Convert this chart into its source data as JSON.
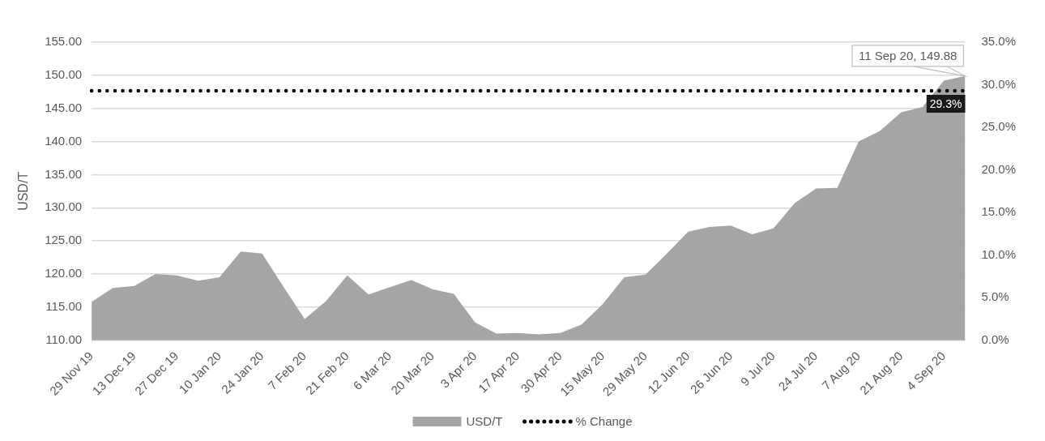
{
  "chart_data": {
    "type": "area",
    "ylabel": "USD/T",
    "categories": [
      "29 Nov 19",
      null,
      "13 Dec 19",
      null,
      "27 Dec 19",
      null,
      "10 Jan 20",
      null,
      "24 Jan 20",
      null,
      "7 Feb 20",
      null,
      "21 Feb 20",
      null,
      "6 Mar 20",
      null,
      "20 Mar 20",
      null,
      "3 Apr 20",
      null,
      "17 Apr 20",
      null,
      "30 Apr 20",
      null,
      "15 May 20",
      null,
      "29 May 20",
      null,
      "12 Jun 20",
      null,
      "26 Jun 20",
      null,
      "9 Jul 20",
      null,
      "24 Jul 20",
      null,
      "7 Aug 20",
      null,
      "21 Aug 20",
      null,
      "4 Sep 20",
      null
    ],
    "series": [
      {
        "name": "USD/T",
        "type": "area",
        "color": "#a5a5a5",
        "values": [
          115.8,
          117.9,
          118.2,
          120.0,
          119.8,
          119.0,
          119.5,
          123.4,
          123.1,
          118.1,
          113.2,
          115.9,
          119.8,
          116.9,
          118.0,
          119.1,
          117.7,
          117.0,
          112.7,
          111.0,
          111.1,
          110.9,
          111.1,
          112.4,
          115.5,
          119.5,
          119.9,
          123.1,
          126.4,
          127.1,
          127.3,
          126.0,
          126.9,
          130.7,
          132.9,
          133.0,
          140.0,
          141.6,
          144.4,
          145.2,
          149.2,
          149.88
        ],
        "value_labels": [
          null,
          null,
          null,
          null,
          null,
          null,
          null,
          null,
          null,
          null,
          null,
          null,
          null,
          null,
          null,
          null,
          null,
          null,
          null,
          null,
          null,
          null,
          null,
          null,
          null,
          null,
          null,
          null,
          null,
          null,
          null,
          null,
          null,
          null,
          null,
          null,
          null,
          null,
          null,
          null,
          null,
          "11 Sep 20, 149.88"
        ]
      },
      {
        "name": "% Change",
        "type": "line",
        "axis": "y2",
        "color": "#000000",
        "line_style": "dotted",
        "marker": "none",
        "values": [
          29.3,
          29.3,
          29.3,
          29.3,
          29.3,
          29.3,
          29.3,
          29.3,
          29.3,
          29.3,
          29.3,
          29.3,
          29.3,
          29.3,
          29.3,
          29.3,
          29.3,
          29.3,
          29.3,
          29.3,
          29.3,
          29.3,
          29.3,
          29.3,
          29.3,
          29.3,
          29.3,
          29.3,
          29.3,
          29.3,
          29.3,
          29.3,
          29.3,
          29.3,
          29.3,
          29.3,
          29.3,
          29.3,
          29.3,
          29.3,
          29.3,
          29.3
        ],
        "value_labels": [
          null,
          null,
          null,
          null,
          null,
          null,
          null,
          null,
          null,
          null,
          null,
          null,
          null,
          null,
          null,
          null,
          null,
          null,
          null,
          null,
          null,
          null,
          null,
          null,
          null,
          null,
          null,
          null,
          null,
          null,
          null,
          null,
          null,
          null,
          null,
          null,
          null,
          null,
          null,
          null,
          null,
          "29.3%"
        ]
      }
    ],
    "ylim": [
      110,
      155
    ],
    "yticks": [
      {
        "value": 110,
        "label": "110.00"
      },
      {
        "value": 115,
        "label": "115.00"
      },
      {
        "value": 120,
        "label": "120.00"
      },
      {
        "value": 125,
        "label": "125.00"
      },
      {
        "value": 130,
        "label": "130.00"
      },
      {
        "value": 135,
        "label": "135.00"
      },
      {
        "value": 140,
        "label": "140.00"
      },
      {
        "value": 145,
        "label": "145.00"
      },
      {
        "value": 150,
        "label": "150.00"
      },
      {
        "value": 155,
        "label": "155.00"
      }
    ],
    "y2lim": [
      0,
      35
    ],
    "y2ticks": [
      {
        "value": 0,
        "label": "0.0%"
      },
      {
        "value": 5,
        "label": "5.0%"
      },
      {
        "value": 10,
        "label": "10.0%"
      },
      {
        "value": 15,
        "label": "15.0%"
      },
      {
        "value": 20,
        "label": "20.0%"
      },
      {
        "value": 25,
        "label": "25.0%"
      },
      {
        "value": 30,
        "label": "30.0%"
      },
      {
        "value": 35,
        "label": "35.0%"
      }
    ],
    "grid": "y",
    "legend": "bottom"
  }
}
